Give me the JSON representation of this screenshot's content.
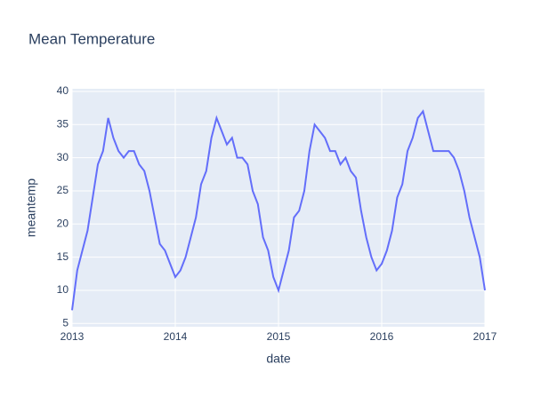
{
  "chart_data": {
    "type": "line",
    "title": "Mean Temperature",
    "x_label": "date",
    "y_label": "meantemp",
    "x": [
      2013,
      2013.05,
      2013.1,
      2013.15,
      2013.2,
      2013.25,
      2013.3,
      2013.35,
      2013.4,
      2013.45,
      2013.5,
      2013.55,
      2013.6,
      2013.65,
      2013.7,
      2013.75,
      2013.8,
      2013.85,
      2013.9,
      2013.95,
      2014,
      2014.05,
      2014.1,
      2014.15,
      2014.2,
      2014.25,
      2014.3,
      2014.35,
      2014.4,
      2014.45,
      2014.5,
      2014.55,
      2014.6,
      2014.65,
      2014.7,
      2014.75,
      2014.8,
      2014.85,
      2014.9,
      2014.95,
      2015,
      2015.05,
      2015.1,
      2015.15,
      2015.2,
      2015.25,
      2015.3,
      2015.35,
      2015.4,
      2015.45,
      2015.5,
      2015.55,
      2015.6,
      2015.65,
      2015.7,
      2015.75,
      2015.8,
      2015.85,
      2015.9,
      2015.95,
      2016,
      2016.05,
      2016.1,
      2016.15,
      2016.2,
      2016.25,
      2016.3,
      2016.35,
      2016.4,
      2016.45,
      2016.5,
      2016.55,
      2016.6,
      2016.65,
      2016.7,
      2016.75,
      2016.8,
      2016.85,
      2016.9,
      2016.95,
      2017
    ],
    "series": [
      {
        "name": "meantemp",
        "color": "#636efa",
        "values": [
          7,
          13,
          16,
          19,
          24,
          29,
          31,
          36,
          33,
          31,
          30,
          31,
          31,
          29,
          28,
          25,
          21,
          17,
          16,
          14,
          12,
          13,
          15,
          18,
          21,
          26,
          28,
          33,
          36,
          34,
          32,
          33,
          30,
          30,
          29,
          25,
          23,
          18,
          16,
          12,
          10,
          13,
          16,
          21,
          22,
          25,
          31,
          35,
          34,
          33,
          31,
          31,
          29,
          30,
          28,
          27,
          22,
          18,
          15,
          13,
          14,
          16,
          19,
          24,
          26,
          31,
          33,
          36,
          37,
          34,
          31,
          31,
          31,
          31,
          30,
          28,
          25,
          21,
          18,
          15,
          10
        ]
      }
    ],
    "xlim": [
      2013,
      2017
    ],
    "xticks": [
      2013,
      2014,
      2015,
      2016,
      2017
    ],
    "ylim": [
      4.5,
      40.4
    ],
    "yticks": [
      5,
      10,
      15,
      20,
      25,
      30,
      35,
      40
    ],
    "grid": true
  }
}
